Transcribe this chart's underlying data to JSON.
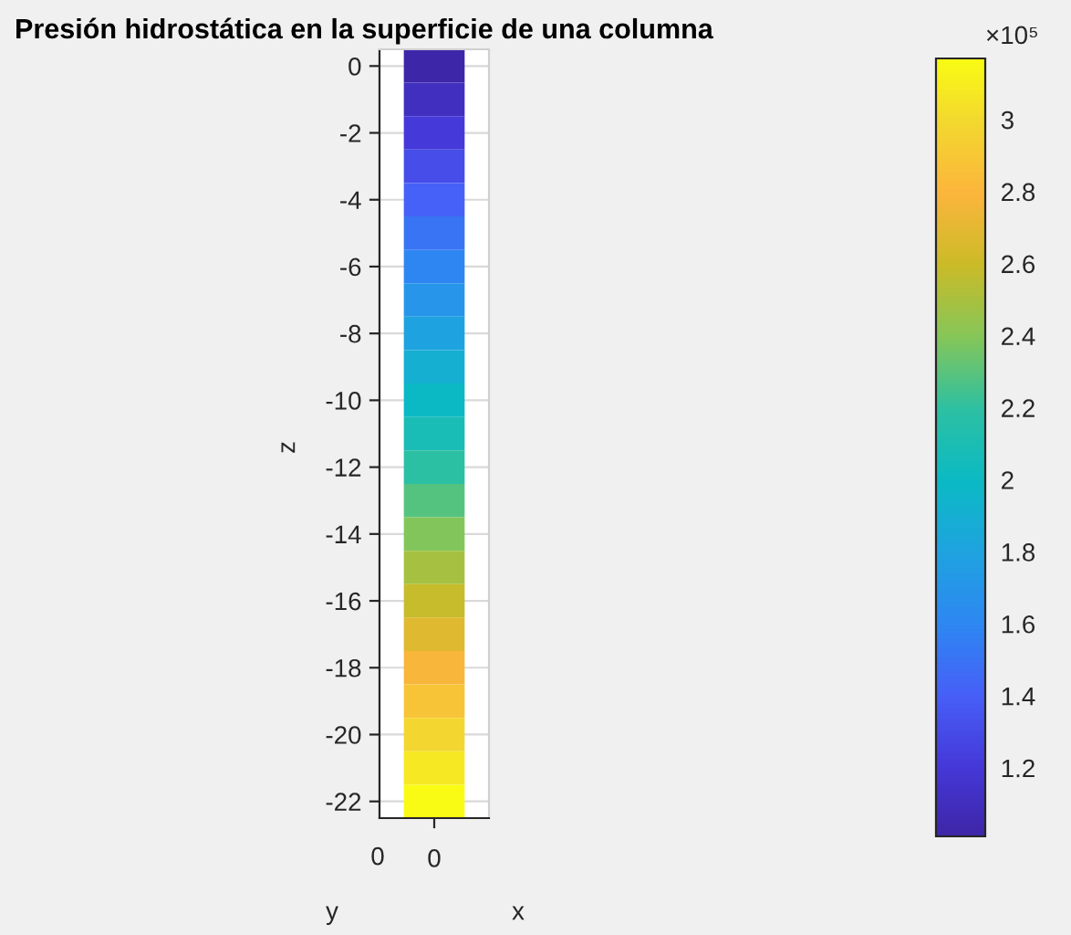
{
  "chart_data": {
    "type": "heatmap",
    "title": "Presión hidrostática en la superficie de una columna",
    "xlabel": "x",
    "ylabel": "z",
    "clabel": "×10⁵",
    "categories": [
      "0"
    ],
    "y_categories": [
      "0",
      null,
      "-2",
      null,
      "-4",
      null,
      "-6",
      null,
      "-8",
      null,
      "-10",
      null,
      "-12",
      null,
      "-14",
      null,
      "-16",
      null,
      "-18",
      null,
      "-20",
      null,
      "-22"
    ],
    "cells": [
      [
        1.01
      ],
      [
        1.11
      ],
      [
        1.21
      ],
      [
        1.31
      ],
      [
        1.41
      ],
      [
        1.5
      ],
      [
        1.6
      ],
      [
        1.7
      ],
      [
        1.8
      ],
      [
        1.9
      ],
      [
        1.99
      ],
      [
        2.09
      ],
      [
        2.19
      ],
      [
        2.29
      ],
      [
        2.39
      ],
      [
        2.49
      ],
      [
        2.58
      ],
      [
        2.68
      ],
      [
        2.78
      ],
      [
        2.88
      ],
      [
        2.98
      ],
      [
        3.07
      ],
      [
        3.17
      ]
    ],
    "clim": [
      1.01,
      3.17
    ],
    "cticks": [
      1.2,
      1.4,
      1.6,
      1.8,
      2,
      2.2,
      2.4,
      2.6,
      2.8,
      3
    ],
    "grid": true,
    "annotations": [
      "0",
      "y"
    ]
  }
}
